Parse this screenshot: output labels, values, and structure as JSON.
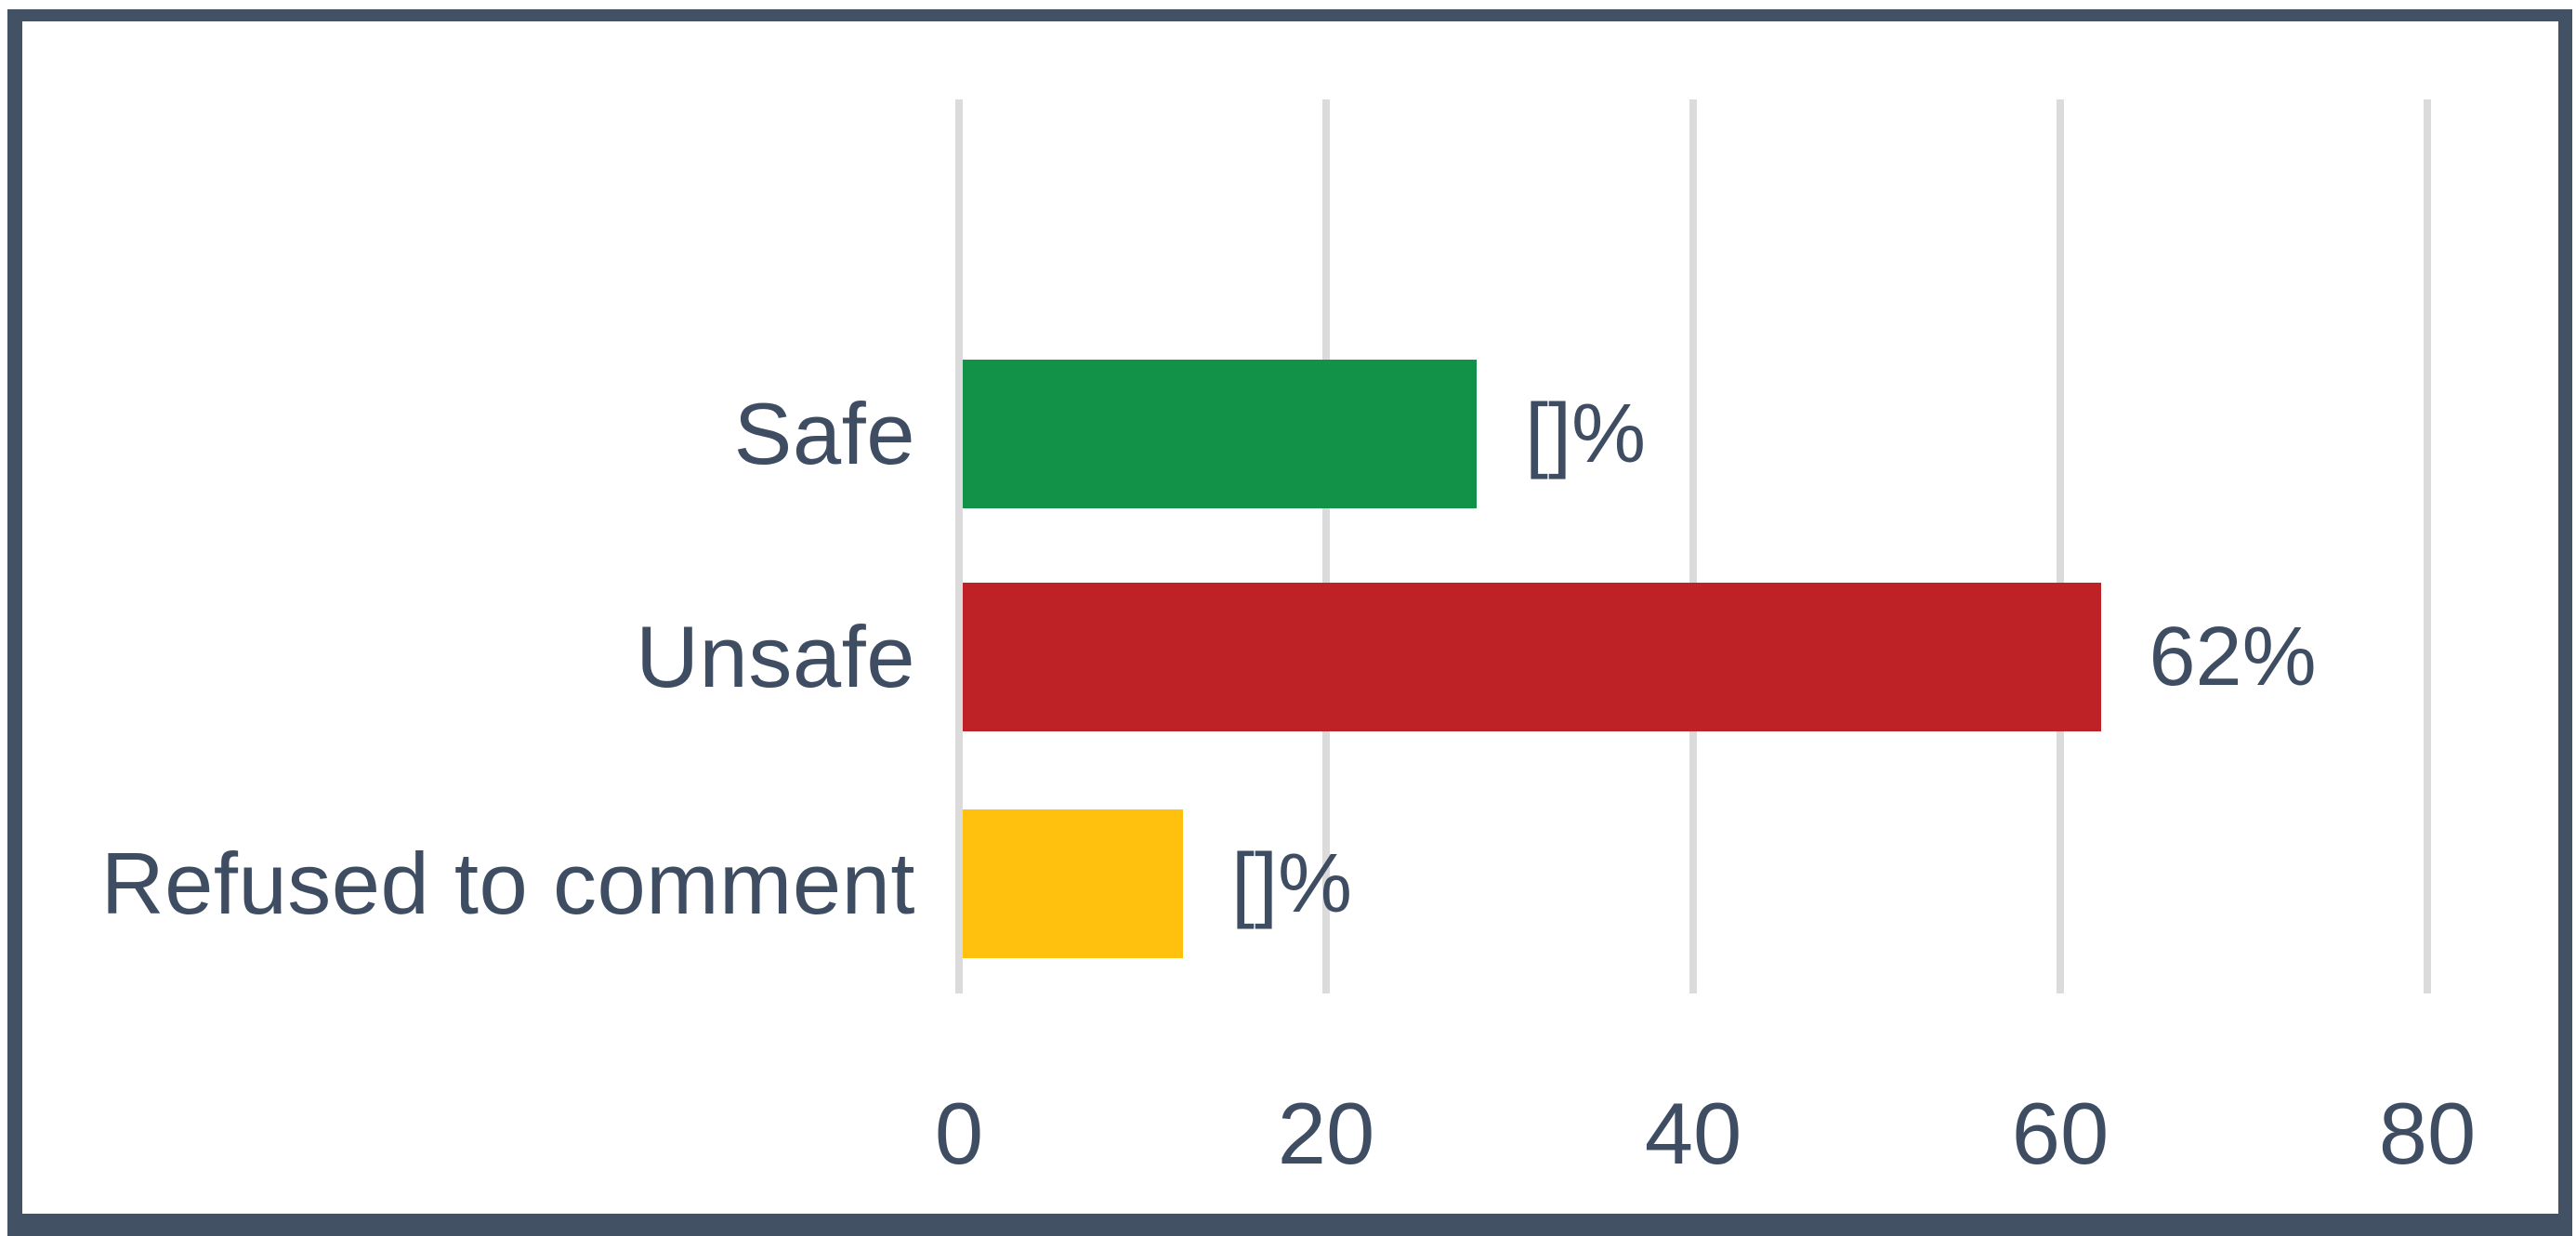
{
  "chart_data": {
    "type": "bar",
    "orientation": "horizontal",
    "title": "",
    "categories": [
      "Safe",
      "Unsafe",
      "Refused to comment"
    ],
    "values": [
      28,
      62,
      12
    ],
    "value_labels": [
      "[]%",
      "62%",
      "[]%"
    ],
    "bar_colors": [
      "#129249",
      "#BE2126",
      "#FFC10D"
    ],
    "xlim": [
      0,
      80
    ],
    "xticks": [
      0,
      20,
      40,
      60,
      80
    ],
    "xtick_labels": [
      "0",
      "20",
      "40",
      "60",
      "80"
    ],
    "grid": "vertical",
    "legend": "none",
    "gridline_color": "#DBDBDB",
    "axis_text_color": "#3F4D63",
    "frame_border_color": "#425264",
    "background_color": "#FFFFFF"
  }
}
